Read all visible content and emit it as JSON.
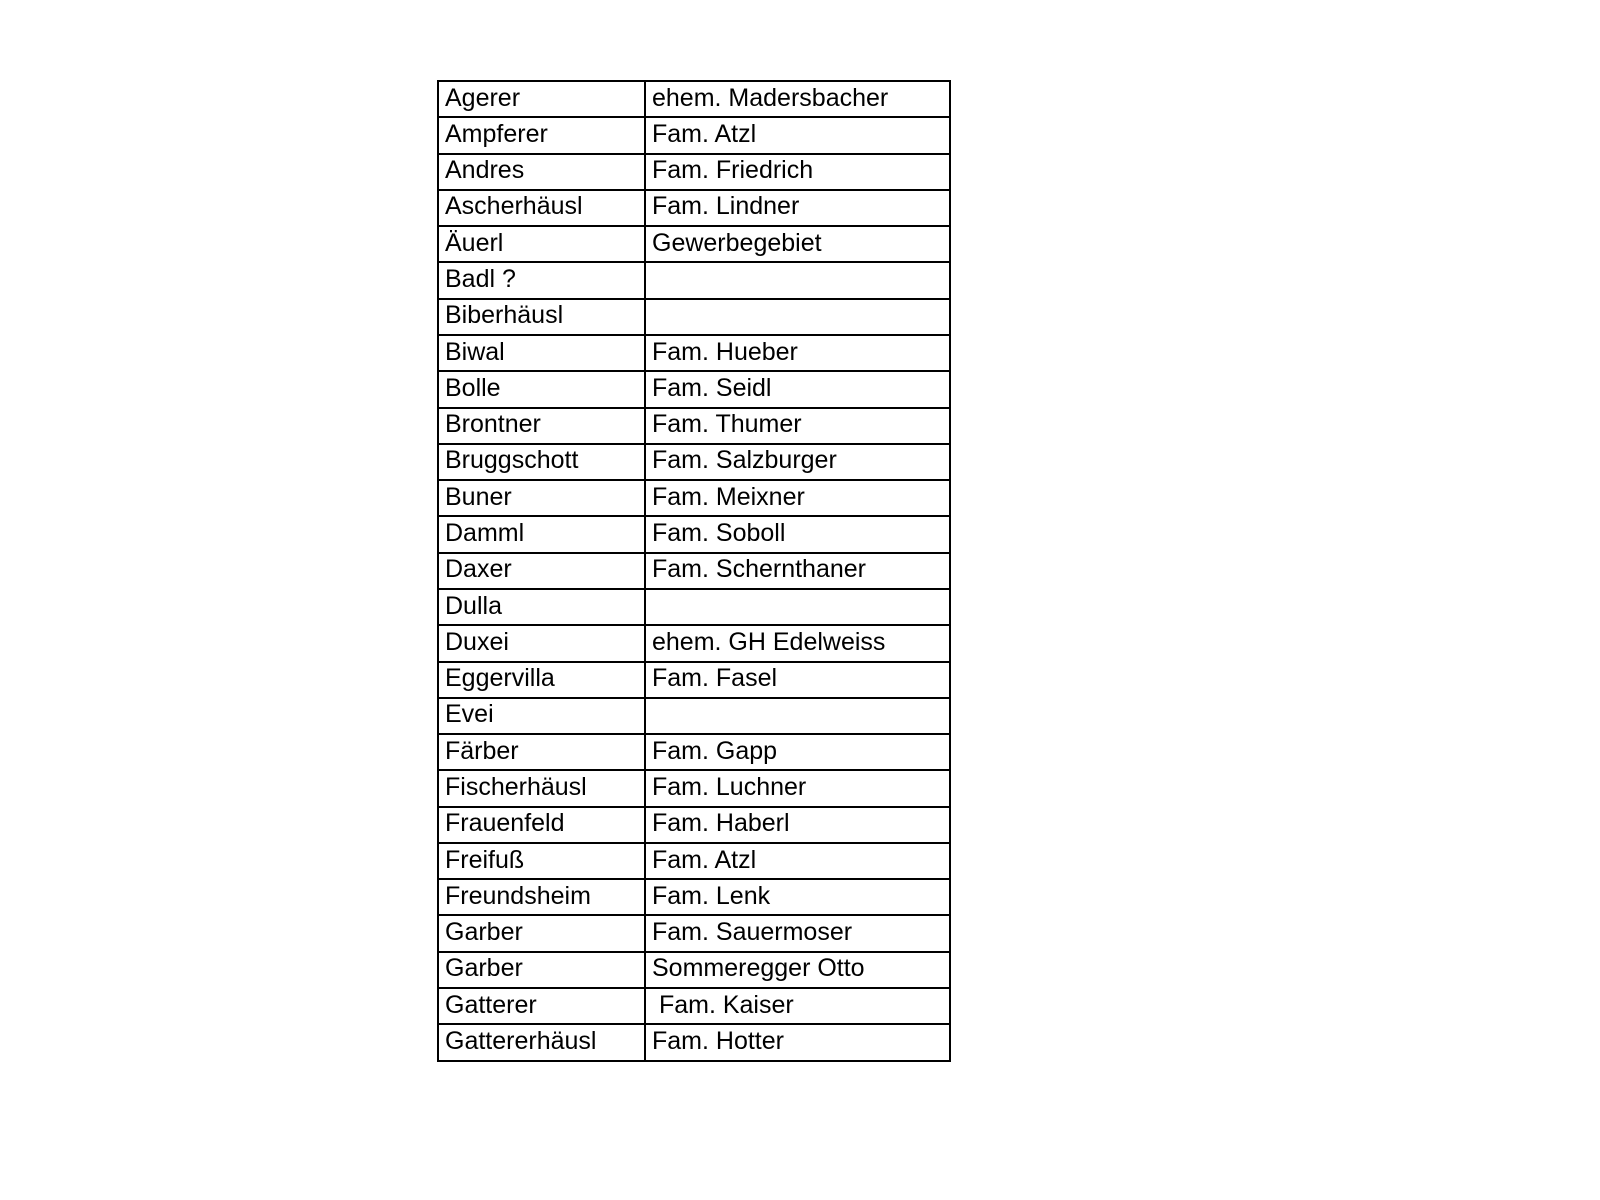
{
  "page": {
    "background_color": "#ffffff",
    "text_color": "#000000",
    "border_color": "#000000"
  },
  "table": {
    "rows": [
      {
        "house_name": "Agerer",
        "occupant": "ehem. Madersbacher"
      },
      {
        "house_name": "Ampferer",
        "occupant": "Fam. Atzl"
      },
      {
        "house_name": "Andres",
        "occupant": "Fam. Friedrich"
      },
      {
        "house_name": "Ascherhäusl",
        "occupant": "Fam. Lindner"
      },
      {
        "house_name": "Äuerl",
        "occupant": "Gewerbegebiet"
      },
      {
        "house_name": "Badl ?",
        "occupant": ""
      },
      {
        "house_name": "Biberhäusl",
        "occupant": ""
      },
      {
        "house_name": "Biwal",
        "occupant": "Fam. Hueber"
      },
      {
        "house_name": "Bolle",
        "occupant": "Fam. Seidl"
      },
      {
        "house_name": "Brontner",
        "occupant": "Fam. Thumer"
      },
      {
        "house_name": "Bruggschott",
        "occupant": "Fam. Salzburger"
      },
      {
        "house_name": "Buner",
        "occupant": "Fam. Meixner"
      },
      {
        "house_name": "Damml",
        "occupant": "Fam. Soboll"
      },
      {
        "house_name": "Daxer",
        "occupant": "Fam. Schernthaner"
      },
      {
        "house_name": "Dulla",
        "occupant": ""
      },
      {
        "house_name": "Duxei",
        "occupant": "ehem. GH Edelweiss"
      },
      {
        "house_name": "Eggervilla",
        "occupant": "Fam. Fasel"
      },
      {
        "house_name": "Evei",
        "occupant": ""
      },
      {
        "house_name": "Färber",
        "occupant": "Fam. Gapp"
      },
      {
        "house_name": "Fischerhäusl",
        "occupant": "Fam. Luchner"
      },
      {
        "house_name": "Frauenfeld",
        "occupant": "Fam. Haberl"
      },
      {
        "house_name": "Freifuß",
        "occupant": "Fam. Atzl"
      },
      {
        "house_name": "Freundsheim",
        "occupant": "Fam. Lenk"
      },
      {
        "house_name": "Garber",
        "occupant": "Fam. Sauermoser"
      },
      {
        "house_name": "Garber",
        "occupant": "Sommeregger Otto"
      },
      {
        "house_name": "Gatterer",
        "occupant": " Fam. Kaiser"
      },
      {
        "house_name": "Gattererhäusl",
        "occupant": "Fam. Hotter"
      }
    ]
  }
}
